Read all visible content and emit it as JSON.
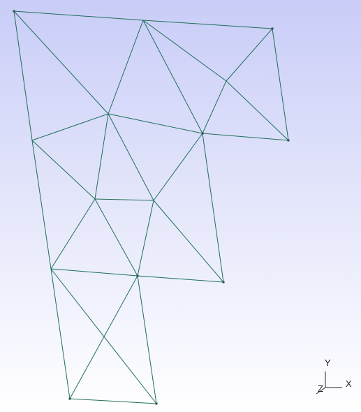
{
  "axes": {
    "x_label": "X",
    "y_label": "Y",
    "z_label": "Z"
  },
  "colors": {
    "background_top": "#c9cdf7",
    "background_bottom": "#ffffff",
    "edge": "#1f6e5a",
    "node": "#2f4f4f",
    "axis": "#222222"
  }
}
